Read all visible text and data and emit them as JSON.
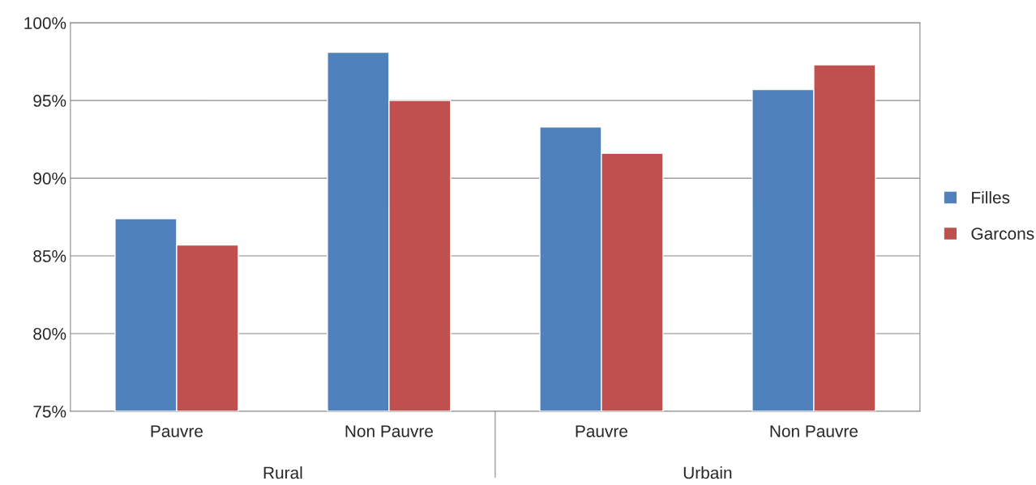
{
  "chart_data": {
    "type": "bar",
    "categories": [
      "Pauvre",
      "Non Pauvre",
      "Pauvre",
      "Non Pauvre"
    ],
    "series": [
      {
        "name": "Filles",
        "color": "#4f81bd",
        "values": [
          87.4,
          98.1,
          93.3,
          95.7
        ]
      },
      {
        "name": "Garcons",
        "color": "#c0504d",
        "values": [
          85.7,
          95.0,
          91.6,
          97.3
        ]
      }
    ],
    "annotations": [
      "Rural",
      "Urbain"
    ],
    "ylim": [
      75,
      100
    ],
    "yticks": [
      {
        "value": 75,
        "label": "75%"
      },
      {
        "value": 80,
        "label": "80%"
      },
      {
        "value": 85,
        "label": "85%"
      },
      {
        "value": 90,
        "label": "90%"
      },
      {
        "value": 95,
        "label": "95%"
      },
      {
        "value": 100,
        "label": "100%"
      }
    ],
    "grid": "y",
    "legend": "right"
  }
}
